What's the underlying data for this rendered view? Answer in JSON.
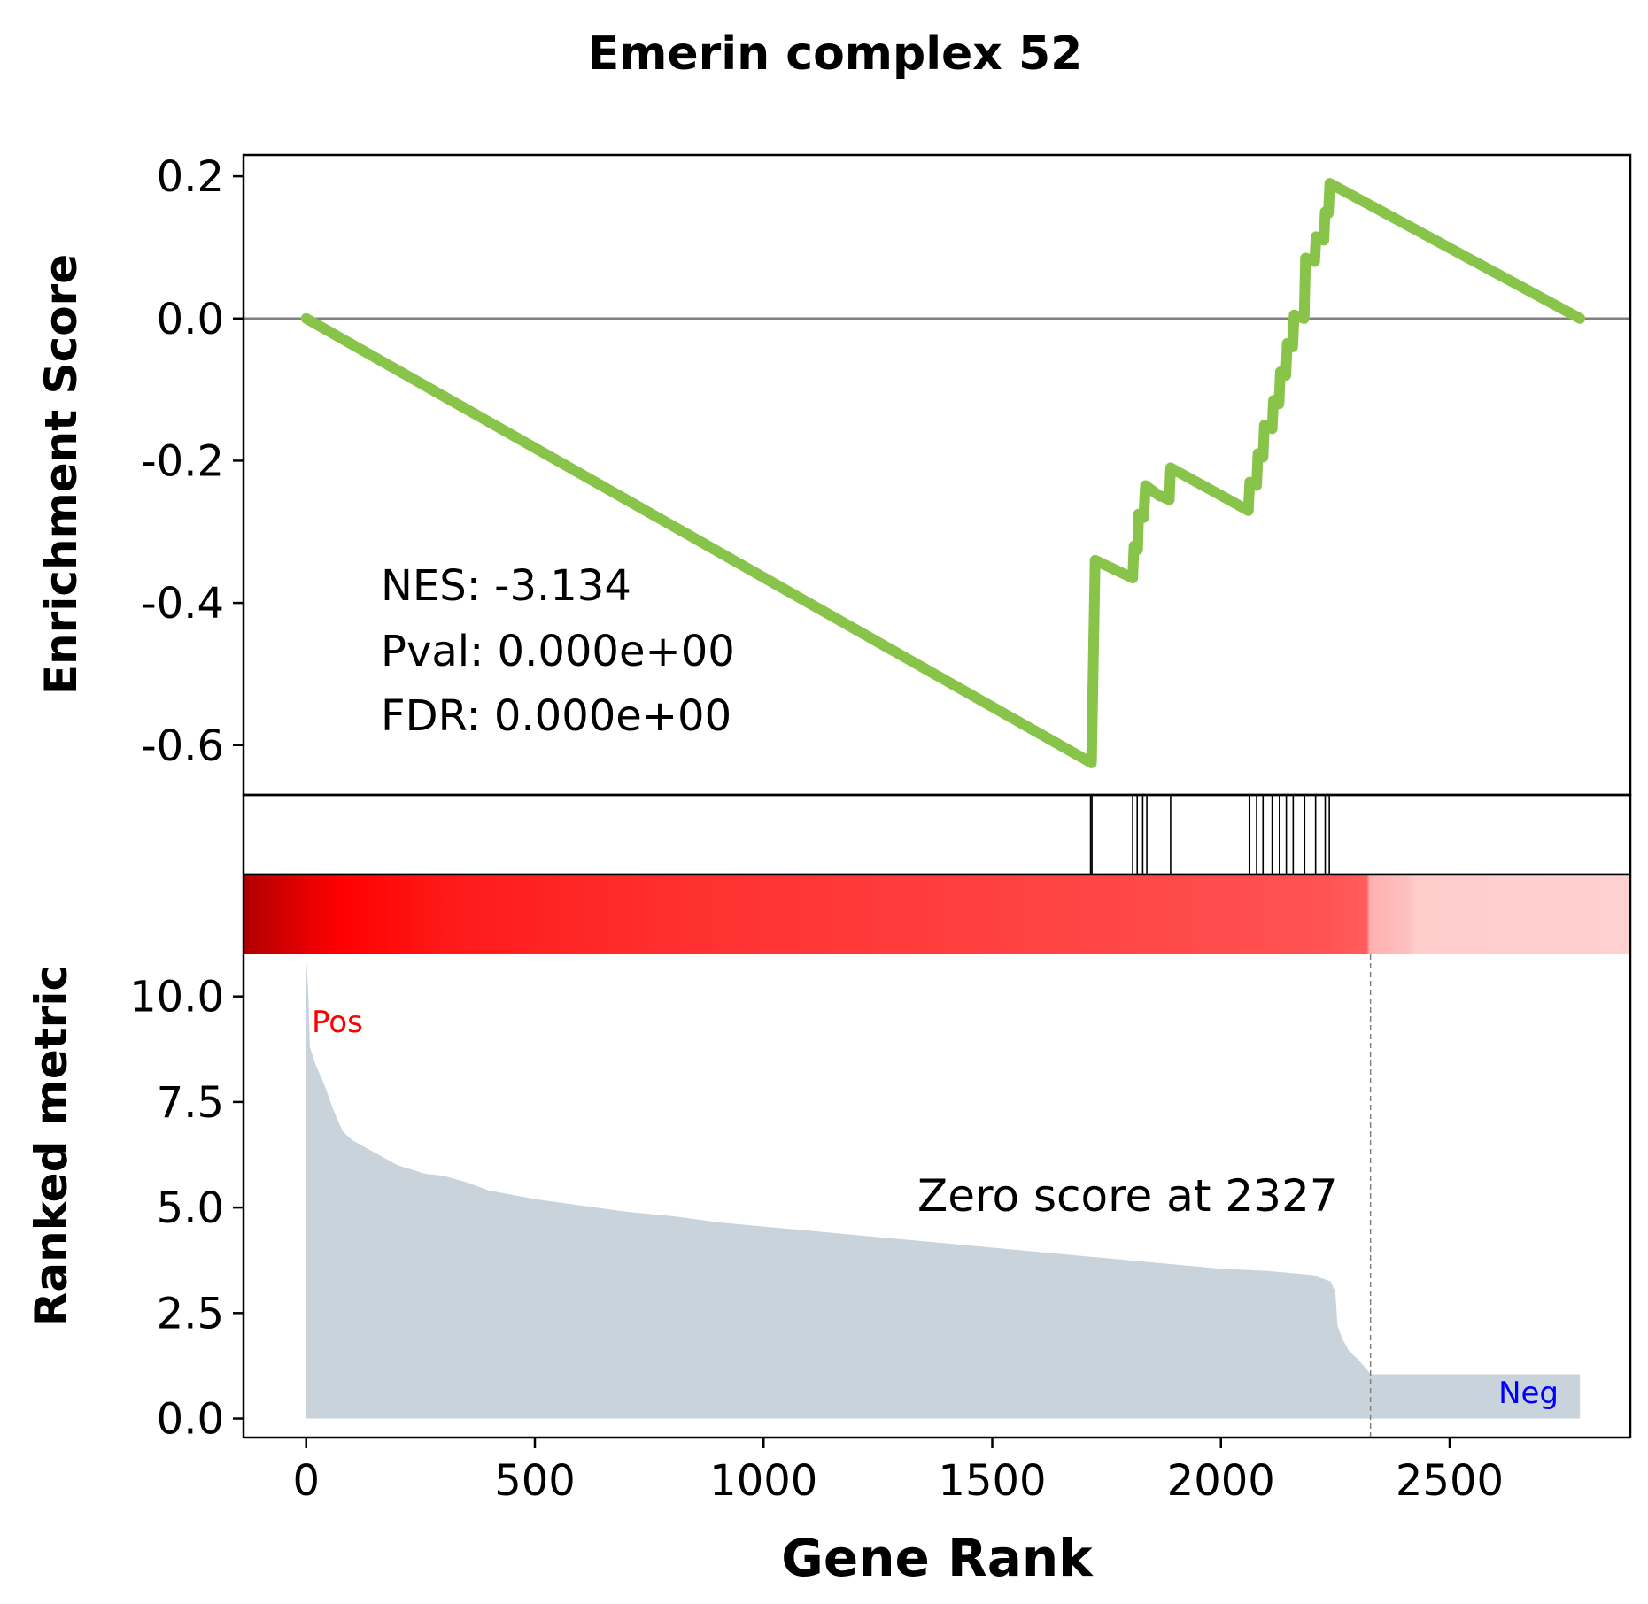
{
  "title": "Emerin complex 52",
  "colors": {
    "es_line": "#88c34a",
    "zero_line": "#808080",
    "hit_line": "#000000",
    "metric_fill": "#c9d3dc",
    "pos_label": "#ff0000",
    "neg_label": "#0000ff",
    "zero_marker": "#808080"
  },
  "chart_data": [
    {
      "panel": "enrichment",
      "type": "line",
      "ylabel": "Enrichment Score",
      "ylim": [
        -0.67,
        0.23
      ],
      "xlim": [
        -137,
        2895
      ],
      "yticks": [
        0.2,
        0.0,
        -0.2,
        -0.4,
        -0.6
      ],
      "ytick_labels": [
        "0.2",
        "0.0",
        "-0.2",
        "-0.4",
        "-0.6"
      ],
      "stats": [
        "NES: -3.134",
        "Pval: 0.000e+00",
        "FDR: 0.000e+00"
      ],
      "points": [
        [
          0,
          0.0
        ],
        [
          1717,
          -0.625
        ],
        [
          1725,
          -0.34
        ],
        [
          1807,
          -0.365
        ],
        [
          1810,
          -0.32
        ],
        [
          1818,
          -0.325
        ],
        [
          1820,
          -0.275
        ],
        [
          1831,
          -0.28
        ],
        [
          1835,
          -0.235
        ],
        [
          1867,
          -0.25
        ],
        [
          1870,
          -0.25
        ],
        [
          1887,
          -0.255
        ],
        [
          1890,
          -0.21
        ],
        [
          2060,
          -0.27
        ],
        [
          2063,
          -0.23
        ],
        [
          2078,
          -0.235
        ],
        [
          2081,
          -0.19
        ],
        [
          2092,
          -0.195
        ],
        [
          2095,
          -0.15
        ],
        [
          2112,
          -0.155
        ],
        [
          2115,
          -0.115
        ],
        [
          2127,
          -0.12
        ],
        [
          2130,
          -0.075
        ],
        [
          2142,
          -0.08
        ],
        [
          2145,
          -0.035
        ],
        [
          2157,
          -0.04
        ],
        [
          2160,
          0.005
        ],
        [
          2182,
          0.0
        ],
        [
          2185,
          0.085
        ],
        [
          2205,
          0.08
        ],
        [
          2208,
          0.115
        ],
        [
          2225,
          0.11
        ],
        [
          2228,
          0.15
        ],
        [
          2235,
          0.148
        ],
        [
          2238,
          0.19
        ],
        [
          2785,
          0.0
        ]
      ]
    },
    {
      "panel": "hits",
      "type": "rug",
      "positions": [
        1715,
        1718,
        1807,
        1817,
        1829,
        1838,
        1890,
        2062,
        2078,
        2092,
        2112,
        2128,
        2143,
        2158,
        2183,
        2207,
        2228,
        2237
      ]
    },
    {
      "panel": "ranked_metric",
      "type": "area",
      "ylabel": "Ranked metric",
      "xlabel": "Gene Rank",
      "ylim": [
        -0.45,
        11.0
      ],
      "xlim": [
        -137,
        2895
      ],
      "xticks": [
        0,
        500,
        1000,
        1500,
        2000,
        2500
      ],
      "xtick_labels": [
        "0",
        "500",
        "1000",
        "1500",
        "2000",
        "2500"
      ],
      "yticks": [
        0.0,
        2.5,
        5.0,
        7.5,
        10.0
      ],
      "ytick_labels": [
        "0.0",
        "2.5",
        "5.0",
        "7.5",
        "10.0"
      ],
      "pos_label": "Pos",
      "neg_label": "Neg",
      "zero_score_rank": 2327,
      "zero_score_text": "Zero score at 2327",
      "points": [
        [
          0,
          10.9
        ],
        [
          5,
          10.0
        ],
        [
          8,
          8.8
        ],
        [
          20,
          8.4
        ],
        [
          40,
          7.9
        ],
        [
          60,
          7.3
        ],
        [
          80,
          6.8
        ],
        [
          100,
          6.6
        ],
        [
          150,
          6.3
        ],
        [
          200,
          6.0
        ],
        [
          260,
          5.8
        ],
        [
          300,
          5.75
        ],
        [
          350,
          5.6
        ],
        [
          400,
          5.4
        ],
        [
          500,
          5.2
        ],
        [
          600,
          5.05
        ],
        [
          700,
          4.9
        ],
        [
          800,
          4.8
        ],
        [
          900,
          4.65
        ],
        [
          1000,
          4.55
        ],
        [
          1100,
          4.45
        ],
        [
          1200,
          4.35
        ],
        [
          1300,
          4.25
        ],
        [
          1400,
          4.15
        ],
        [
          1500,
          4.05
        ],
        [
          1600,
          3.95
        ],
        [
          1700,
          3.85
        ],
        [
          1800,
          3.75
        ],
        [
          1900,
          3.65
        ],
        [
          2000,
          3.55
        ],
        [
          2100,
          3.5
        ],
        [
          2200,
          3.4
        ],
        [
          2240,
          3.25
        ],
        [
          2250,
          3.0
        ],
        [
          2255,
          2.2
        ],
        [
          2265,
          1.9
        ],
        [
          2280,
          1.6
        ],
        [
          2300,
          1.4
        ],
        [
          2320,
          1.15
        ],
        [
          2327,
          1.05
        ],
        [
          2785,
          1.05
        ]
      ],
      "heatmap_stops": [
        [
          0.0,
          "#b00000"
        ],
        [
          0.04,
          "#e00000"
        ],
        [
          0.07,
          "#ff0000"
        ],
        [
          0.15,
          "#ff1a1a"
        ],
        [
          0.3,
          "#ff2e2e"
        ],
        [
          0.5,
          "#ff3d3d"
        ],
        [
          0.65,
          "#ff4848"
        ],
        [
          0.78,
          "#ff5252"
        ],
        [
          0.81,
          "#ff5e5e"
        ],
        [
          0.812,
          "#ffb0b0"
        ],
        [
          0.84,
          "#ffc0c0"
        ],
        [
          0.845,
          "#ffcccc"
        ],
        [
          1.0,
          "#ffd0d0"
        ]
      ]
    }
  ]
}
